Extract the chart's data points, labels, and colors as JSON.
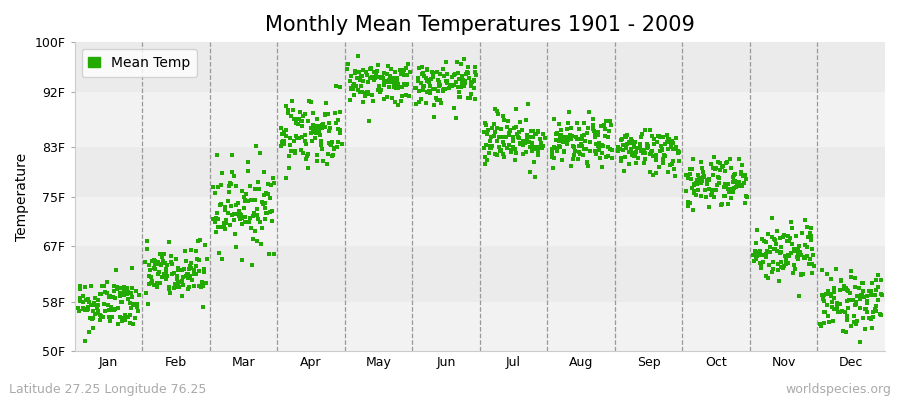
{
  "title": "Monthly Mean Temperatures 1901 - 2009",
  "ylabel": "Temperature",
  "ylim": [
    50,
    100
  ],
  "yticks": [
    50,
    58,
    67,
    75,
    83,
    92,
    100
  ],
  "ytick_labels": [
    "50F",
    "58F",
    "67F",
    "75F",
    "83F",
    "92F",
    "100F"
  ],
  "months": [
    "Jan",
    "Feb",
    "Mar",
    "Apr",
    "May",
    "Jun",
    "Jul",
    "Aug",
    "Sep",
    "Oct",
    "Nov",
    "Dec"
  ],
  "month_means_f": [
    57.5,
    62.5,
    73.5,
    85.5,
    93.5,
    93.0,
    84.5,
    83.5,
    82.5,
    77.5,
    66.0,
    58.0
  ],
  "month_stds_f": [
    2.2,
    2.5,
    3.5,
    2.8,
    1.8,
    1.8,
    2.2,
    2.0,
    1.8,
    2.2,
    2.5,
    2.5
  ],
  "n_years": 109,
  "dot_color": "#22aa00",
  "dot_size": 5,
  "bg_color": "#f2f2f2",
  "stripe_colors": [
    "#f2f2f2",
    "#ebebeb"
  ],
  "dash_color": "#999999",
  "legend_label": "Mean Temp",
  "bottom_left_text": "Latitude 27.25 Longitude 76.25",
  "bottom_right_text": "worldspecies.org",
  "title_fontsize": 15,
  "label_fontsize": 10,
  "tick_fontsize": 9,
  "footer_fontsize": 9
}
